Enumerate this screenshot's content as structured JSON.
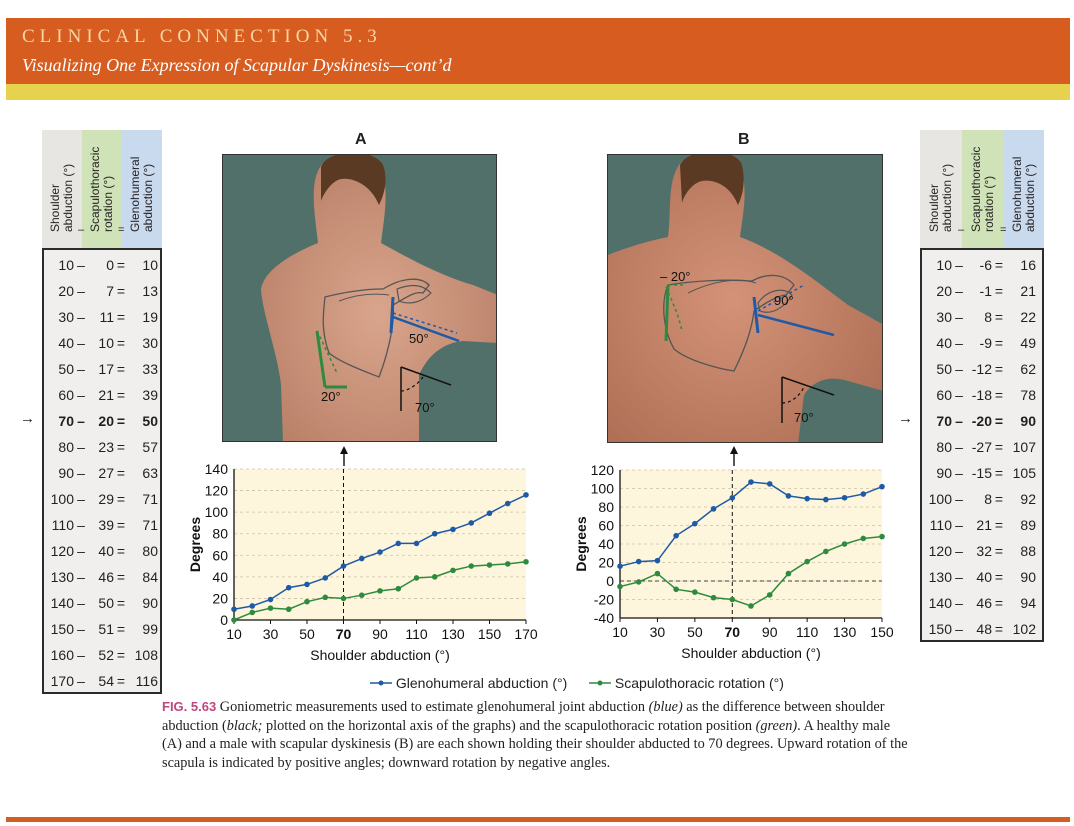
{
  "header": {
    "label": "CLINICAL CONNECTION 5.3",
    "subtitle": "Visualizing One Expression of Scapular Dyskinesis—cont’d"
  },
  "colors": {
    "header_band": "#d75c1f",
    "header_strip": "#e7d24d",
    "glenohumeral": "#1f5aa6",
    "scapulothoracic": "#2e8b3e",
    "shoulder_col_bg": "#e8e6e3",
    "scap_col_bg": "#cfe2b8",
    "gleno_col_bg": "#c9d9ee",
    "chart_bg": "#fdf6dc"
  },
  "table_a": {
    "headers": [
      "Shoulder\nabduction (°)",
      "Scapulothoracic\nrotation (°)",
      "Glenohumeral\nabduction (°)"
    ],
    "minus": "–",
    "equals": "=",
    "rows": [
      {
        "shoulder": "10",
        "scap": "0",
        "gleno": "10"
      },
      {
        "shoulder": "20",
        "scap": "7",
        "gleno": "13"
      },
      {
        "shoulder": "30",
        "scap": "11",
        "gleno": "19"
      },
      {
        "shoulder": "40",
        "scap": "10",
        "gleno": "30"
      },
      {
        "shoulder": "50",
        "scap": "17",
        "gleno": "33"
      },
      {
        "shoulder": "60",
        "scap": "21",
        "gleno": "39"
      },
      {
        "shoulder": "70",
        "scap": "20",
        "gleno": "50"
      },
      {
        "shoulder": "80",
        "scap": "23",
        "gleno": "57"
      },
      {
        "shoulder": "90",
        "scap": "27",
        "gleno": "63"
      },
      {
        "shoulder": "100",
        "scap": "29",
        "gleno": "71"
      },
      {
        "shoulder": "110",
        "scap": "39",
        "gleno": "71"
      },
      {
        "shoulder": "120",
        "scap": "40",
        "gleno": "80"
      },
      {
        "shoulder": "130",
        "scap": "46",
        "gleno": "84"
      },
      {
        "shoulder": "140",
        "scap": "50",
        "gleno": "90"
      },
      {
        "shoulder": "150",
        "scap": "51",
        "gleno": "99"
      },
      {
        "shoulder": "160",
        "scap": "52",
        "gleno": "108"
      },
      {
        "shoulder": "170",
        "scap": "54",
        "gleno": "116"
      }
    ],
    "highlight_index": 6
  },
  "table_b": {
    "headers": [
      "Shoulder\nabduction (°)",
      "Scapulothoracic\nrotation (°)",
      "Glenohumeral\nabduction (°)"
    ],
    "minus": "–",
    "equals": "=",
    "rows": [
      {
        "shoulder": "10",
        "scap": "-6",
        "gleno": "16"
      },
      {
        "shoulder": "20",
        "scap": "-1",
        "gleno": "21"
      },
      {
        "shoulder": "30",
        "scap": "8",
        "gleno": "22"
      },
      {
        "shoulder": "40",
        "scap": "-9",
        "gleno": "49"
      },
      {
        "shoulder": "50",
        "scap": "-12",
        "gleno": "62"
      },
      {
        "shoulder": "60",
        "scap": "-18",
        "gleno": "78"
      },
      {
        "shoulder": "70",
        "scap": "-20",
        "gleno": "90"
      },
      {
        "shoulder": "80",
        "scap": "-27",
        "gleno": "107"
      },
      {
        "shoulder": "90",
        "scap": "-15",
        "gleno": "105"
      },
      {
        "shoulder": "100",
        "scap": "8",
        "gleno": "92"
      },
      {
        "shoulder": "110",
        "scap": "21",
        "gleno": "89"
      },
      {
        "shoulder": "120",
        "scap": "32",
        "gleno": "88"
      },
      {
        "shoulder": "130",
        "scap": "40",
        "gleno": "90"
      },
      {
        "shoulder": "140",
        "scap": "46",
        "gleno": "94"
      },
      {
        "shoulder": "150",
        "scap": "48",
        "gleno": "102"
      }
    ],
    "highlight_index": 6
  },
  "panel_a": {
    "title": "A",
    "angles": {
      "gleno": "50°",
      "scap": "20°",
      "shoulder": "70°"
    }
  },
  "panel_b": {
    "title": "B",
    "angles": {
      "gleno": "90°",
      "scap": "– 20°",
      "shoulder": "70°"
    }
  },
  "legend": {
    "gleno": "Glenohumeral abduction (°)",
    "scap": "Scapulothoracic rotation (°)"
  },
  "caption": {
    "fig": "FIG. 5.63",
    "text_1": " Goniometric measurements used to estimate glenohumeral joint abduction ",
    "blue": "(blue)",
    "text_2": " as the difference between shoulder abduction (",
    "black": "black;",
    "text_3": " plotted on the horizontal axis of the graphs) and the scapulothoracic rotation position ",
    "green": "(green)",
    "text_4": ". A healthy male (A) and a male with scapular dyskinesis (B) are each shown holding their shoulder abducted to 70 degrees. Upward rotation of the scapula is indicated by positive angles; downward rotation by negative angles."
  },
  "chart_data": [
    {
      "type": "line",
      "panel": "A",
      "xlabel": "Shoulder abduction (°)",
      "ylabel": "Degrees",
      "xlim": [
        10,
        170
      ],
      "ylim": [
        0,
        140
      ],
      "xticks": [
        10,
        30,
        50,
        70,
        90,
        110,
        130,
        150,
        170
      ],
      "yticks": [
        0,
        20,
        40,
        60,
        80,
        100,
        120,
        140
      ],
      "marker_x": 70,
      "grid": true,
      "legend": "bottom",
      "x": [
        10,
        20,
        30,
        40,
        50,
        60,
        70,
        80,
        90,
        100,
        110,
        120,
        130,
        140,
        150,
        160,
        170
      ],
      "series": [
        {
          "name": "Glenohumeral abduction (°)",
          "values": [
            10,
            13,
            19,
            30,
            33,
            39,
            50,
            57,
            63,
            71,
            71,
            80,
            84,
            90,
            99,
            108,
            116
          ]
        },
        {
          "name": "Scapulothoracic rotation (°)",
          "values": [
            0,
            7,
            11,
            10,
            17,
            21,
            20,
            23,
            27,
            29,
            39,
            40,
            46,
            50,
            51,
            52,
            54
          ]
        }
      ]
    },
    {
      "type": "line",
      "panel": "B",
      "xlabel": "Shoulder abduction (°)",
      "ylabel": "Degrees",
      "xlim": [
        10,
        150
      ],
      "ylim": [
        -40,
        120
      ],
      "xticks": [
        10,
        30,
        50,
        70,
        90,
        110,
        130,
        150
      ],
      "yticks": [
        -40,
        -20,
        0,
        20,
        40,
        60,
        80,
        100,
        120
      ],
      "marker_x": 70,
      "grid": true,
      "legend": "bottom",
      "x": [
        10,
        20,
        30,
        40,
        50,
        60,
        70,
        80,
        90,
        100,
        110,
        120,
        130,
        140,
        150
      ],
      "series": [
        {
          "name": "Glenohumeral abduction (°)",
          "values": [
            16,
            21,
            22,
            49,
            62,
            78,
            90,
            107,
            105,
            92,
            89,
            88,
            90,
            94,
            102
          ]
        },
        {
          "name": "Scapulothoracic rotation (°)",
          "values": [
            -6,
            -1,
            8,
            -9,
            -12,
            -18,
            -20,
            -27,
            -15,
            8,
            21,
            32,
            40,
            46,
            48
          ]
        }
      ]
    }
  ]
}
